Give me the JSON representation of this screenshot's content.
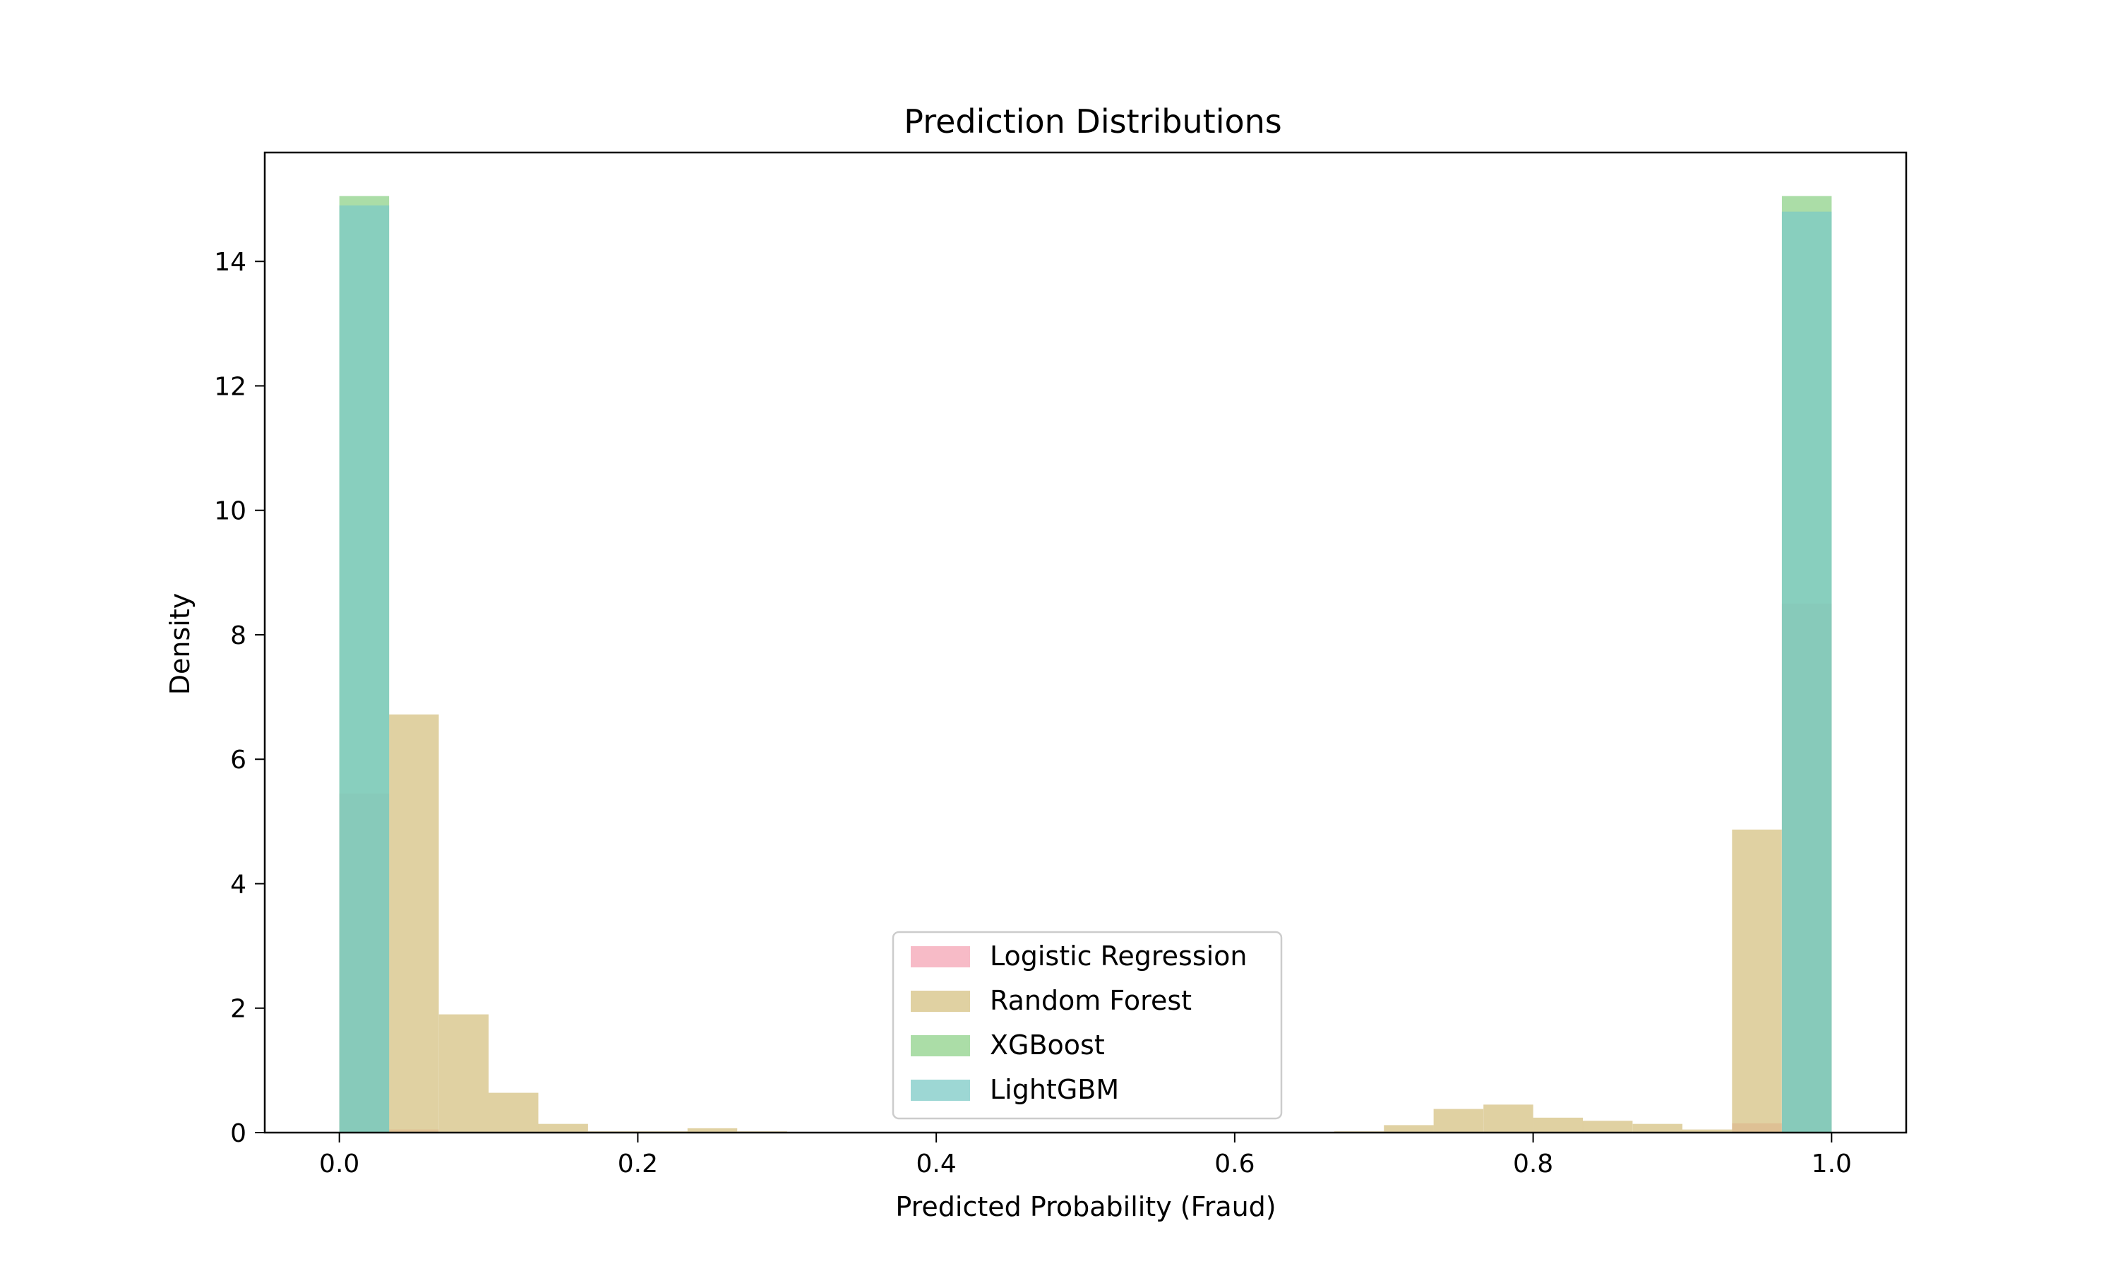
{
  "chart_data": {
    "type": "bar",
    "title": "Prediction Distributions",
    "xlabel": "Predicted Probability (Fraud)",
    "ylabel": "Density",
    "xlim": [
      -0.05,
      1.05
    ],
    "ylim": [
      0,
      15.75
    ],
    "x_ticks": [
      0.0,
      0.2,
      0.4,
      0.6,
      0.8,
      1.0
    ],
    "x_tick_labels": [
      "0.0",
      "0.2",
      "0.4",
      "0.6",
      "0.8",
      "1.0"
    ],
    "y_ticks": [
      0,
      2,
      4,
      6,
      8,
      10,
      12,
      14
    ],
    "y_tick_labels": [
      "0",
      "2",
      "4",
      "6",
      "8",
      "10",
      "12",
      "14"
    ],
    "legend_position": "bottom-center",
    "bins": 30,
    "bin_range": [
      0,
      1
    ],
    "series": [
      {
        "name": "Logistic Regression",
        "color": "#f4a4b4",
        "bin_edges": [
          0.0,
          0.0333,
          0.0667,
          0.1,
          0.1333,
          0.1667,
          0.2,
          0.2333,
          0.2667,
          0.3,
          0.3333,
          0.3667,
          0.4,
          0.4333,
          0.4667,
          0.5,
          0.5333,
          0.5667,
          0.6,
          0.6333,
          0.6667,
          0.7,
          0.7333,
          0.7667,
          0.8,
          0.8333,
          0.8667,
          0.9,
          0.9333,
          0.9667
        ],
        "values": [
          5.45,
          0.05,
          0,
          0,
          0,
          0,
          0,
          0,
          0,
          0,
          0,
          0,
          0,
          0,
          0,
          0,
          0,
          0,
          0,
          0,
          0,
          0,
          0,
          0,
          0,
          0,
          0,
          0,
          0.15,
          8.5
        ]
      },
      {
        "name": "Random Forest",
        "color": "#d6c283",
        "bin_edges": [
          0.0,
          0.0333,
          0.0667,
          0.1,
          0.1333,
          0.1667,
          0.2,
          0.2333,
          0.2667,
          0.3,
          0.3333,
          0.3667,
          0.4,
          0.4333,
          0.4667,
          0.5,
          0.5333,
          0.5667,
          0.6,
          0.6333,
          0.6667,
          0.7,
          0.7333,
          0.7667,
          0.8,
          0.8333,
          0.8667,
          0.9,
          0.9333,
          0.9667
        ],
        "values": [
          0.02,
          6.72,
          1.9,
          0.64,
          0.14,
          0.02,
          0.02,
          0.07,
          0.02,
          0,
          0,
          0,
          0,
          0,
          0,
          0,
          0,
          0,
          0,
          0,
          0.02,
          0.12,
          0.38,
          0.45,
          0.24,
          0.19,
          0.14,
          0.05,
          4.87,
          0.02
        ]
      },
      {
        "name": "XGBoost",
        "color": "#8fd18a",
        "bin_edges": [
          0.0,
          0.0333,
          0.0667,
          0.1,
          0.1333,
          0.1667,
          0.2,
          0.2333,
          0.2667,
          0.3,
          0.3333,
          0.3667,
          0.4,
          0.4333,
          0.4667,
          0.5,
          0.5333,
          0.5667,
          0.6,
          0.6333,
          0.6667,
          0.7,
          0.7333,
          0.7667,
          0.8,
          0.8333,
          0.8667,
          0.9,
          0.9333,
          0.9667
        ],
        "values": [
          15.05,
          0,
          0,
          0,
          0,
          0,
          0,
          0,
          0,
          0,
          0,
          0,
          0,
          0,
          0,
          0,
          0,
          0,
          0,
          0,
          0,
          0,
          0,
          0,
          0,
          0,
          0,
          0,
          0,
          15.05
        ]
      },
      {
        "name": "LightGBM",
        "color": "#7ccac5",
        "bin_edges": [
          0.0,
          0.0333,
          0.0667,
          0.1,
          0.1333,
          0.1667,
          0.2,
          0.2333,
          0.2667,
          0.3,
          0.3333,
          0.3667,
          0.4,
          0.4333,
          0.4667,
          0.5,
          0.5333,
          0.5667,
          0.6,
          0.6333,
          0.6667,
          0.7,
          0.7333,
          0.7667,
          0.8,
          0.8333,
          0.8667,
          0.9,
          0.9333,
          0.9667
        ],
        "values": [
          14.9,
          0,
          0,
          0,
          0,
          0,
          0,
          0,
          0,
          0,
          0,
          0,
          0,
          0,
          0,
          0,
          0,
          0,
          0,
          0,
          0,
          0,
          0,
          0,
          0,
          0,
          0,
          0,
          0,
          14.8
        ]
      }
    ]
  }
}
